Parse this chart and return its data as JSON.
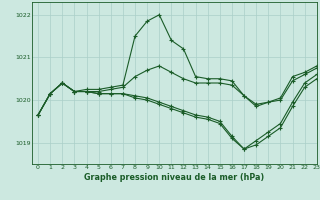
{
  "title": "Graphe pression niveau de la mer (hPa)",
  "bg_color": "#cce8e0",
  "grid_color": "#aacfc8",
  "line_color": "#1a5c28",
  "xlim": [
    -0.5,
    23
  ],
  "ylim": [
    1018.5,
    1022.3
  ],
  "yticks": [
    1019,
    1020,
    1021,
    1022
  ],
  "xticks": [
    0,
    1,
    2,
    3,
    4,
    5,
    6,
    7,
    8,
    9,
    10,
    11,
    12,
    13,
    14,
    15,
    16,
    17,
    18,
    19,
    20,
    21,
    22,
    23
  ],
  "curves": [
    [
      1019.65,
      1020.15,
      1020.4,
      1020.2,
      1020.25,
      1020.25,
      1020.3,
      1020.35,
      1021.5,
      1021.85,
      1022.0,
      1021.4,
      1021.2,
      1020.55,
      1020.5,
      1020.5,
      1020.45,
      1020.1,
      1019.85,
      1019.95,
      1020.05,
      1020.55,
      1020.65,
      1020.8
    ],
    [
      1019.65,
      1020.15,
      1020.4,
      1020.2,
      1020.2,
      1020.15,
      1020.15,
      1020.15,
      1020.1,
      1020.05,
      1019.95,
      1019.85,
      1019.75,
      1019.65,
      1019.6,
      1019.5,
      1019.15,
      1018.85,
      1019.05,
      1019.25,
      1019.45,
      1019.95,
      1020.4,
      1020.6
    ],
    [
      1019.65,
      1020.15,
      1020.4,
      1020.2,
      1020.2,
      1020.15,
      1020.15,
      1020.15,
      1020.05,
      1020.0,
      1019.9,
      1019.8,
      1019.7,
      1019.6,
      1019.55,
      1019.45,
      1019.1,
      1018.85,
      1018.95,
      1019.15,
      1019.35,
      1019.85,
      1020.3,
      1020.5
    ],
    [
      1019.65,
      1020.15,
      1020.4,
      1020.2,
      1020.2,
      1020.2,
      1020.25,
      1020.3,
      1020.55,
      1020.7,
      1020.8,
      1020.65,
      1020.5,
      1020.4,
      1020.4,
      1020.4,
      1020.35,
      1020.1,
      1019.9,
      1019.95,
      1020.0,
      1020.45,
      1020.6,
      1020.75
    ]
  ]
}
